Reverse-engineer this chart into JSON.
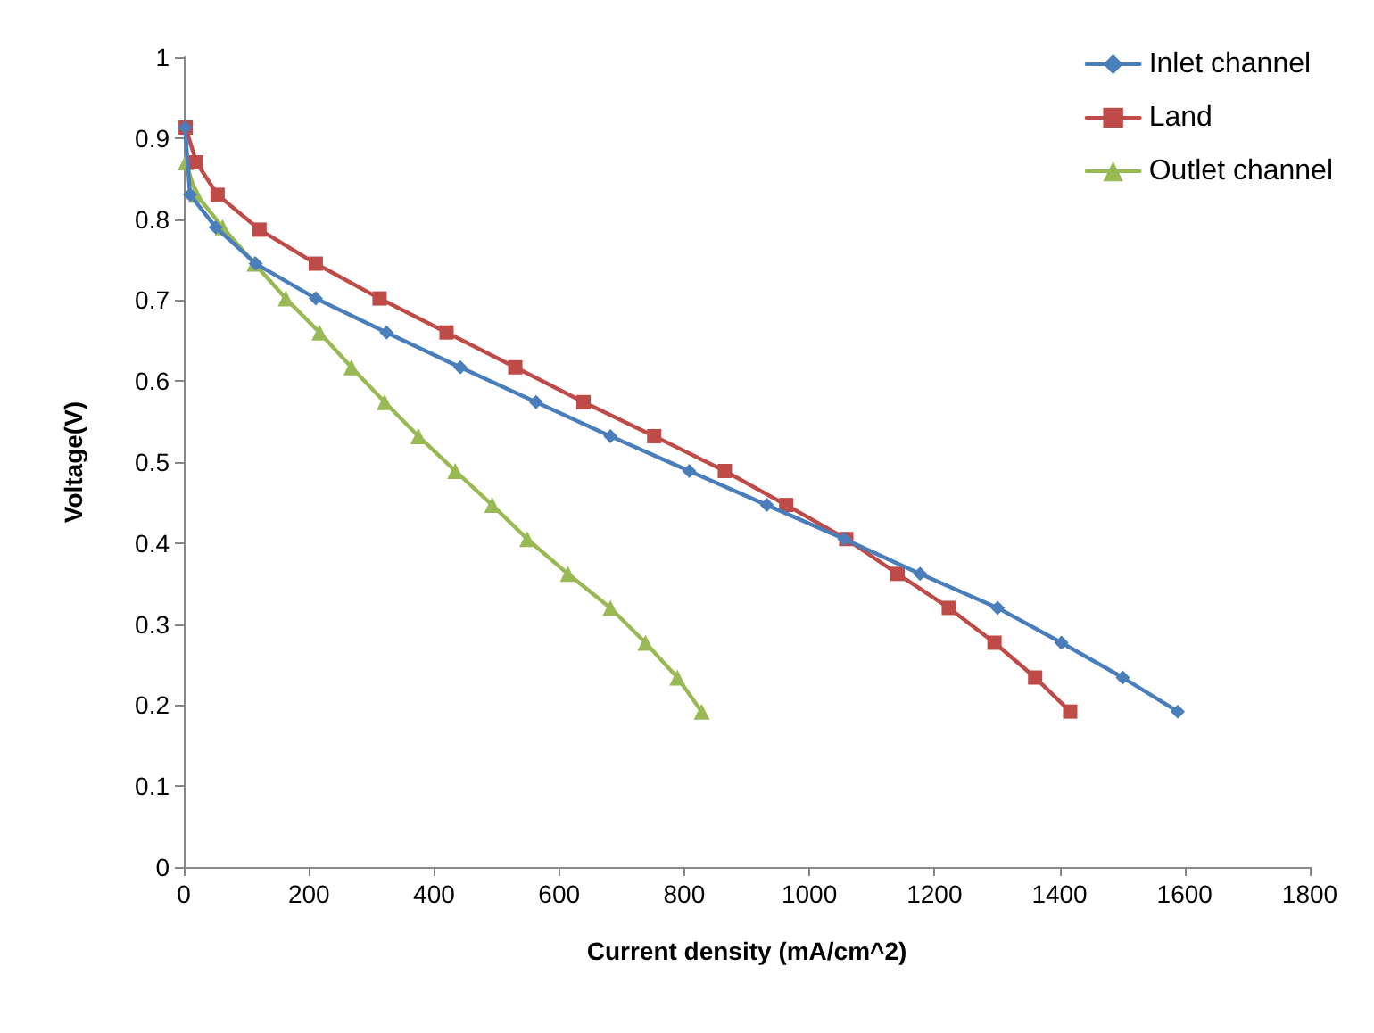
{
  "chart_data": {
    "type": "line",
    "xlabel": "Current density (mA/cm^2)",
    "ylabel": "Voltage(V)",
    "xlim": [
      0,
      1800
    ],
    "xticks": [
      0,
      200,
      400,
      600,
      800,
      1000,
      1200,
      1400,
      1600,
      1800
    ],
    "ylim": [
      0,
      1
    ],
    "yticks": [
      0,
      0.1,
      0.2,
      0.3,
      0.4,
      0.5,
      0.6,
      0.7,
      0.8,
      0.9,
      1
    ],
    "grid": false,
    "legend": "top right",
    "line_style": "solid",
    "series": [
      {
        "name": "Inlet channel",
        "color": "#4a7ebb",
        "marker": "diamond",
        "x": [
          2,
          10,
          51,
          115,
          211,
          324,
          442,
          563,
          682,
          808,
          932,
          1056,
          1177,
          1301,
          1403,
          1501,
          1589
        ],
        "values": [
          0.913,
          0.83,
          0.79,
          0.745,
          0.702,
          0.66,
          0.617,
          0.574,
          0.532,
          0.489,
          0.447,
          0.405,
          0.362,
          0.32,
          0.277,
          0.234,
          0.192
        ]
      },
      {
        "name": "Land",
        "color": "#be4b48",
        "marker": "square",
        "x": [
          3,
          20,
          54,
          121,
          211,
          313,
          420,
          530,
          639,
          752,
          865,
          963,
          1059,
          1141,
          1223,
          1296,
          1361,
          1417
        ],
        "values": [
          0.913,
          0.87,
          0.83,
          0.787,
          0.745,
          0.702,
          0.66,
          0.617,
          0.574,
          0.532,
          0.489,
          0.447,
          0.405,
          0.362,
          0.32,
          0.277,
          0.234,
          0.192
        ]
      },
      {
        "name": "Outlet channel",
        "color": "#98b954",
        "marker": "triangle",
        "x": [
          3,
          20,
          62,
          113,
          163,
          217,
          268,
          321,
          375,
          434,
          493,
          549,
          614,
          682,
          738,
          789,
          828
        ],
        "values": [
          0.87,
          0.83,
          0.79,
          0.745,
          0.702,
          0.66,
          0.617,
          0.574,
          0.532,
          0.489,
          0.447,
          0.405,
          0.362,
          0.32,
          0.277,
          0.234,
          0.192
        ]
      }
    ]
  }
}
